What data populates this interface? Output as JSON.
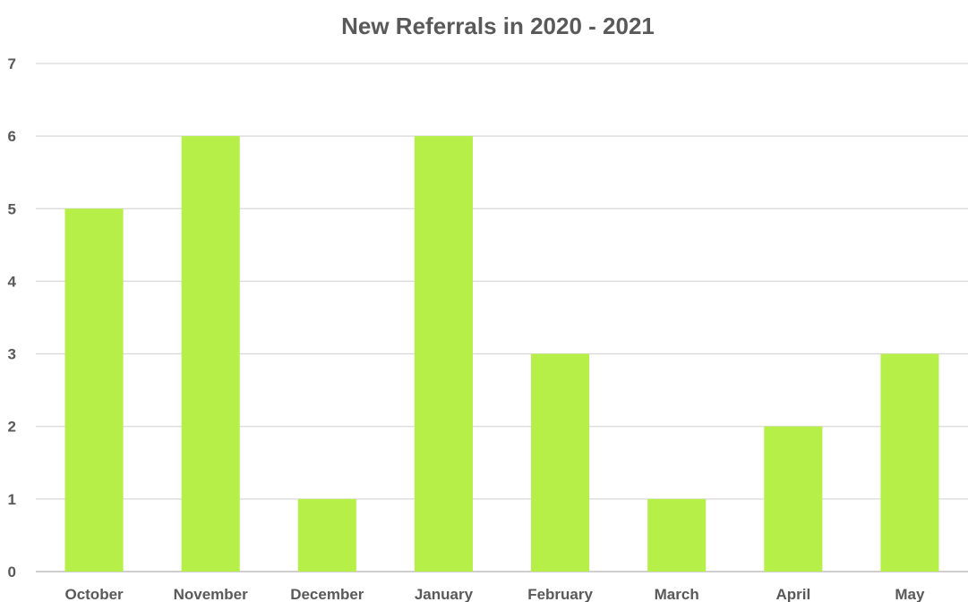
{
  "chart_data": {
    "type": "bar",
    "title": "New Referrals in 2020 - 2021",
    "categories": [
      "October",
      "November",
      "December",
      "January",
      "February",
      "March",
      "April",
      "May"
    ],
    "values": [
      5,
      6,
      1,
      6,
      3,
      1,
      2,
      3
    ],
    "xlabel": "",
    "ylabel": "",
    "ylim": [
      0,
      7
    ],
    "yticks": [
      0,
      1,
      2,
      3,
      4,
      5,
      6,
      7
    ],
    "grid": true,
    "legend": "none",
    "bar_color": "#b5ef47"
  }
}
